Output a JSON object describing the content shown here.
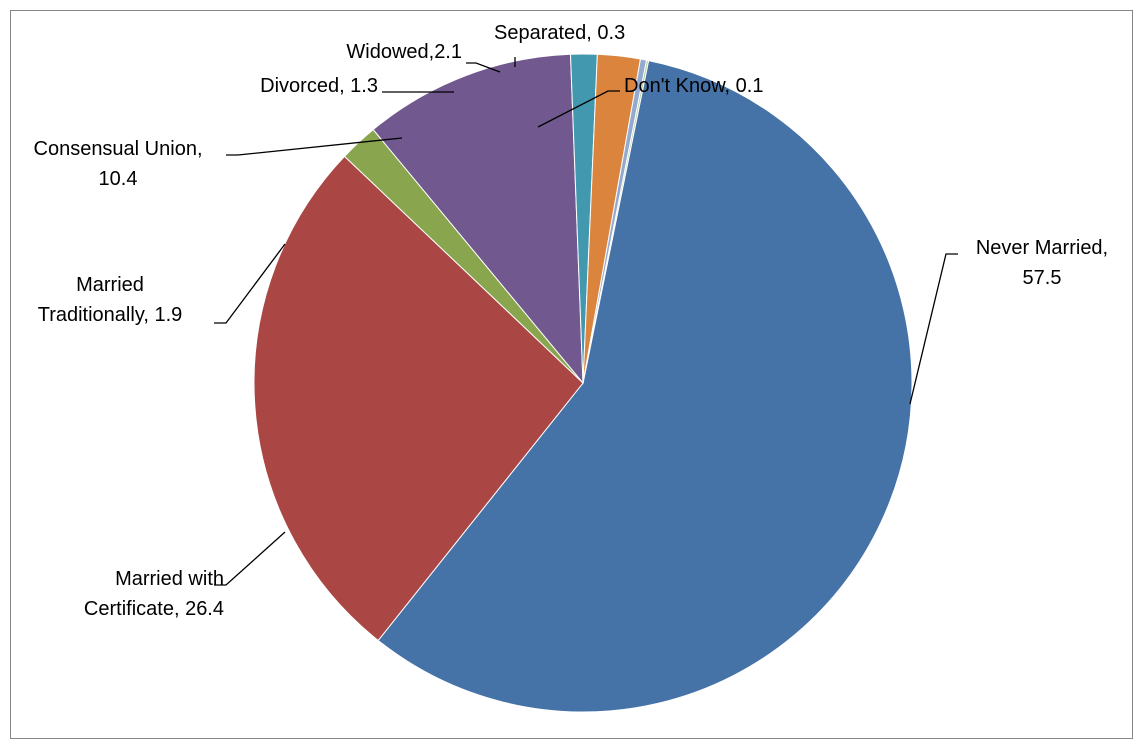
{
  "chart_data": {
    "type": "pie",
    "title": "",
    "start_angle_deg": 11.5,
    "direction": "clockwise",
    "slices": [
      {
        "name": "Never Married",
        "value": 57.5,
        "color": "#4572A7",
        "label_line1": "Never Married,",
        "label_line2": "57.5"
      },
      {
        "name": "Married with Certificate",
        "value": 26.4,
        "color": "#AA4643",
        "label_line1": "Married with",
        "label_line2": "Certificate, 26.4"
      },
      {
        "name": "Married Traditionally",
        "value": 1.9,
        "color": "#89A54E",
        "label_line1": "Married",
        "label_line2": "Traditionally, 1.9"
      },
      {
        "name": "Consensual Union",
        "value": 10.4,
        "color": "#71588F",
        "label_line1": "Consensual Union,",
        "label_line2": "10.4"
      },
      {
        "name": "Divorced",
        "value": 1.3,
        "color": "#4198AF",
        "label_line1": "Divorced, 1.3",
        "label_line2": ""
      },
      {
        "name": "Widowed",
        "value": 2.1,
        "color": "#DB843D",
        "label_line1": "Widowed,2.1",
        "label_line2": ""
      },
      {
        "name": "Separated",
        "value": 0.3,
        "color": "#93A9CF",
        "label_line1": "Separated, 0.3",
        "label_line2": ""
      },
      {
        "name": "Don't Know",
        "value": 0.1,
        "color": "#B9CD96",
        "label_line1": "Don't Know, 0.1",
        "label_line2": ""
      }
    ]
  }
}
